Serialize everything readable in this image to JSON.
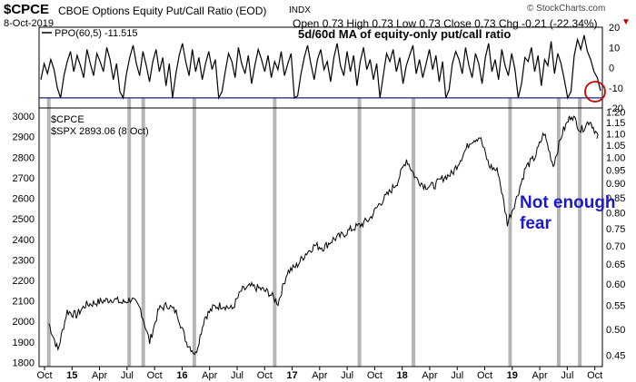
{
  "header": {
    "symbol": "$CPCE",
    "description": "CBOE Options Equity Put/Call Ratio (EOD)",
    "exchange": "INDX",
    "date": "8-Oct-2019",
    "quote": "Open 0.73  High 0.73  Low 0.73  Close 0.73  Chg -0.21 (-22.34%)",
    "chg_marker": "▼",
    "watermark": "© StockCharts.com"
  },
  "colors": {
    "price": "#000000",
    "panel_border": "#000000",
    "threshold": "#1a237e",
    "spike_band": "#a8a8a8",
    "annotation_blue": "#1a1acc",
    "circle": "#cc0000",
    "chg_red": "#cc0000"
  },
  "chart_data": [
    {
      "type": "line",
      "legend_label": "PPO(60,5) -11.515",
      "annotation": "5d/60d MA of equity-only put/call ratio",
      "ylim": [
        -20,
        20
      ],
      "y_ticks": [
        20,
        10,
        0,
        -10,
        -20
      ],
      "threshold": -15,
      "series": [
        {
          "name": "PPO(60,5)",
          "values": [
            -6,
            2,
            -3,
            4,
            -1,
            -10,
            -15,
            -4,
            3,
            8,
            -2,
            6,
            1,
            -5,
            9,
            2,
            -4,
            7,
            3,
            -2,
            10,
            4,
            -6,
            2,
            -12,
            -15,
            -3,
            5,
            11,
            2,
            -4,
            8,
            1,
            -7,
            3,
            9,
            -2,
            5,
            -9,
            2,
            -15,
            -3,
            6,
            12,
            3,
            -4,
            9,
            -2,
            5,
            -6,
            2,
            8,
            -1,
            4,
            -15,
            -12,
            -2,
            7,
            3,
            -5,
            10,
            2,
            -3,
            6,
            -8,
            1,
            9,
            4,
            -2,
            6,
            -5,
            3,
            -1,
            8,
            -4,
            2,
            7,
            -15,
            -14,
            -3,
            5,
            11,
            2,
            -6,
            4,
            9,
            -1,
            3,
            -7,
            5,
            12,
            1,
            -4,
            8,
            -2,
            6,
            -9,
            3,
            10,
            -1,
            4,
            -6,
            2,
            -15,
            -4,
            7,
            3,
            9,
            -2,
            5,
            -8,
            1,
            6,
            11,
            -3,
            4,
            -5,
            2,
            9,
            -1,
            6,
            -7,
            3,
            -15,
            -11,
            2,
            8,
            4,
            -3,
            10,
            1,
            -5,
            7,
            2,
            -8,
            5,
            12,
            -2,
            4,
            -6,
            9,
            1,
            -4,
            7,
            -1,
            -15,
            -8,
            5,
            3,
            10,
            -2,
            6,
            -9,
            4,
            1,
            13,
            -3,
            7,
            2,
            -6,
            -15,
            -12,
            6,
            14,
            9,
            16,
            8,
            4,
            -2,
            -5,
            -11.5
          ]
        }
      ],
      "spikes": [
        {
          "date": "2014-10-15",
          "value": -15
        },
        {
          "date": "2015-07-08",
          "value": -15
        },
        {
          "date": "2015-08-24",
          "value": -15
        },
        {
          "date": "2016-02-11",
          "value": -15
        },
        {
          "date": "2016-11-04",
          "value": -15
        },
        {
          "date": "2017-08-11",
          "value": -15
        },
        {
          "date": "2018-02-08",
          "value": -15
        },
        {
          "date": "2018-12-24",
          "value": -15
        },
        {
          "date": "2019-06-03",
          "value": -15
        },
        {
          "date": "2019-08-12",
          "value": -15
        }
      ],
      "latest_value": -11.515
    },
    {
      "type": "line",
      "legend_symbol": "$CPCE",
      "legend_overlay": "$SPX 2893.06 (8 Oct)",
      "annotation_lines": [
        "Not enough",
        "fear"
      ],
      "left_axis": {
        "ticks": [
          3000,
          2900,
          2800,
          2700,
          2600,
          2500,
          2400,
          2300,
          2200,
          2100,
          2000,
          1900,
          1800
        ],
        "ylim": [
          1780,
          3040
        ]
      },
      "right_axis": {
        "ticks": [
          "1.20",
          "1.15",
          "1.10",
          "1.05",
          "1.00",
          "0.95",
          "0.90",
          "0.85",
          "0.80",
          "0.75",
          "0.70",
          "0.65",
          "0.60",
          "0.55",
          "0.50",
          "0.45"
        ],
        "scale": "log"
      },
      "x_ticks": [
        "Oct",
        "15",
        "Apr",
        "Jul",
        "Oct",
        "16",
        "Apr",
        "Jul",
        "Oct",
        "17",
        "Apr",
        "Jul",
        "Oct",
        "18",
        "Apr",
        "Jul",
        "Oct",
        "19",
        "Apr",
        "Jul",
        "Oct"
      ],
      "series": [
        {
          "name": "$SPX",
          "x": [
            "2014-10",
            "2014-11",
            "2014-12",
            "2015-01",
            "2015-02",
            "2015-03",
            "2015-04",
            "2015-05",
            "2015-06",
            "2015-07",
            "2015-08",
            "2015-09",
            "2015-10",
            "2015-11",
            "2015-12",
            "2016-01",
            "2016-02",
            "2016-03",
            "2016-04",
            "2016-05",
            "2016-06",
            "2016-07",
            "2016-08",
            "2016-09",
            "2016-10",
            "2016-11",
            "2016-12",
            "2017-01",
            "2017-02",
            "2017-03",
            "2017-04",
            "2017-05",
            "2017-06",
            "2017-07",
            "2017-08",
            "2017-09",
            "2017-10",
            "2017-11",
            "2017-12",
            "2018-01",
            "2018-02",
            "2018-03",
            "2018-04",
            "2018-05",
            "2018-06",
            "2018-07",
            "2018-08",
            "2018-09",
            "2018-10",
            "2018-11",
            "2018-12",
            "2019-01",
            "2019-02",
            "2019-03",
            "2019-04",
            "2019-05",
            "2019-06",
            "2019-07",
            "2019-08",
            "2019-09",
            "2019-10"
          ],
          "values": [
            1990,
            1860,
            2050,
            2030,
            2080,
            2090,
            2100,
            2110,
            2090,
            2110,
            2060,
            1900,
            2060,
            2080,
            2040,
            1900,
            1840,
            2020,
            2070,
            2080,
            2060,
            2150,
            2170,
            2160,
            2140,
            2090,
            2240,
            2270,
            2330,
            2370,
            2360,
            2400,
            2420,
            2450,
            2470,
            2500,
            2570,
            2620,
            2680,
            2790,
            2700,
            2660,
            2660,
            2700,
            2720,
            2800,
            2880,
            2900,
            2760,
            2730,
            2480,
            2600,
            2750,
            2800,
            2920,
            2760,
            2920,
            3010,
            2930,
            2980,
            2890
          ]
        },
        {
          "name": "$CPCE",
          "values": [
            0.73
          ]
        }
      ]
    }
  ]
}
